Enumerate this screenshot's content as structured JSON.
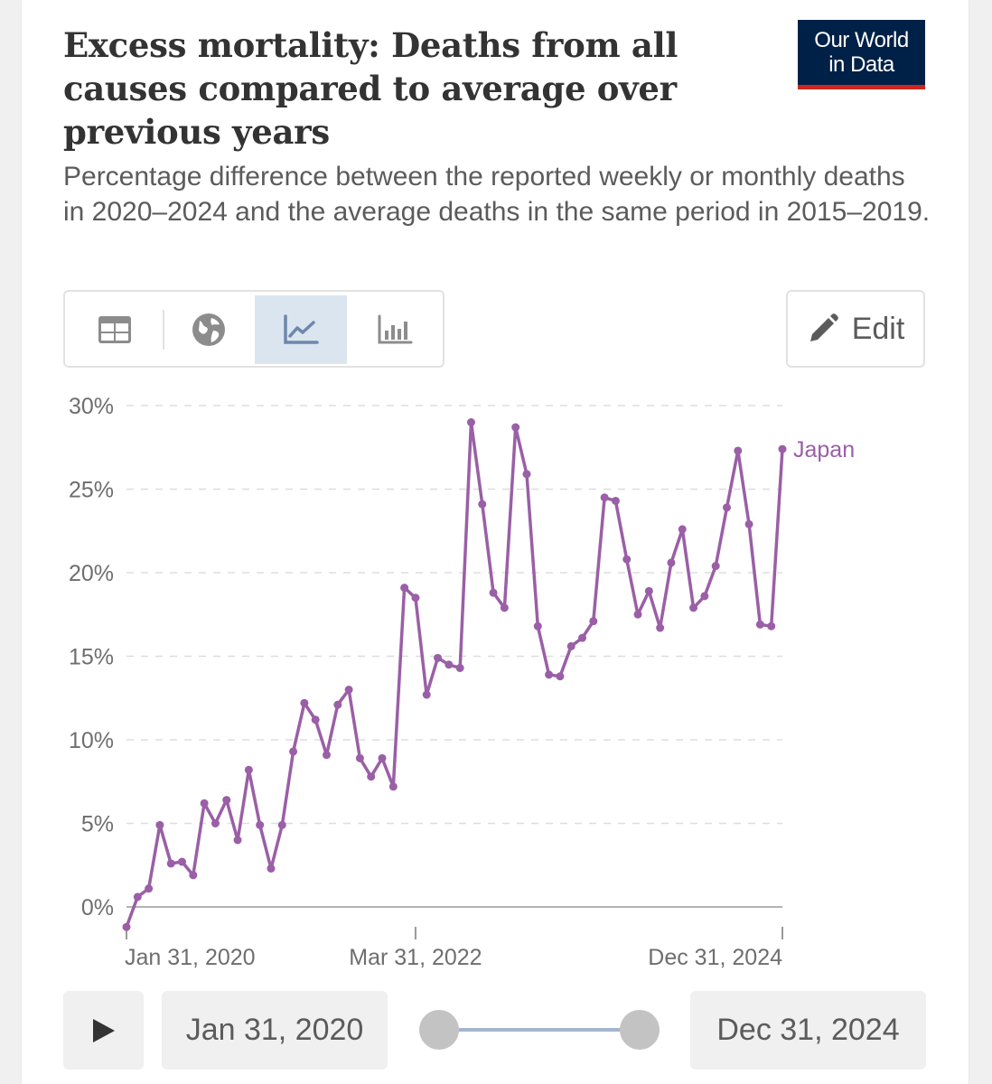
{
  "header": {
    "title": "Excess mortality: Deaths from all causes compared to average over previous years",
    "subtitle": "Percentage difference between the reported weekly or monthly deaths in 2020–2024 and the average deaths in the same period in 2015–2019.",
    "logo_line1": "Our World",
    "logo_line2": "in Data"
  },
  "toolbar": {
    "tabs": [
      {
        "icon": "table-icon",
        "label": "Table",
        "active": false
      },
      {
        "icon": "globe-icon",
        "label": "Map",
        "active": false
      },
      {
        "icon": "line-chart-icon",
        "label": "Chart",
        "active": true
      },
      {
        "icon": "bar-chart-icon",
        "label": "Bar chart",
        "active": false
      }
    ],
    "edit_label": "Edit",
    "edit_icon": "pencil-icon"
  },
  "colors": {
    "series": "#9a5fa6",
    "logo_bg": "#002147",
    "logo_accent": "#ce261e",
    "active_tab": "#dbe5f0"
  },
  "chart_data": {
    "type": "line",
    "title": "",
    "xlabel": "",
    "ylabel": "",
    "ylim": [
      0,
      30
    ],
    "y_ticks": [
      "0%",
      "5%",
      "10%",
      "15%",
      "20%",
      "25%",
      "30%"
    ],
    "x_ticks": [
      "Jan 31, 2020",
      "Mar 31, 2022",
      "Dec 31, 2024"
    ],
    "grid": "horizontal-dashed",
    "series": [
      {
        "name": "Japan",
        "x": [
          "2020-01-31",
          "2020-02-29",
          "2020-03-31",
          "2020-04-30",
          "2020-05-31",
          "2020-06-30",
          "2020-07-31",
          "2020-08-31",
          "2020-09-30",
          "2020-10-31",
          "2020-11-30",
          "2020-12-31",
          "2021-01-31",
          "2021-02-28",
          "2021-03-31",
          "2021-04-30",
          "2021-05-31",
          "2021-06-30",
          "2021-07-31",
          "2021-08-31",
          "2021-09-30",
          "2021-10-31",
          "2021-11-30",
          "2021-12-31",
          "2022-01-31",
          "2022-02-28",
          "2022-03-31",
          "2022-04-30",
          "2022-05-31",
          "2022-06-30",
          "2022-07-31",
          "2022-08-31",
          "2022-09-30",
          "2022-10-31",
          "2022-11-30",
          "2022-12-31",
          "2023-01-31",
          "2023-02-28",
          "2023-03-31",
          "2023-04-30",
          "2023-05-31",
          "2023-06-30",
          "2023-07-31",
          "2023-08-31",
          "2023-09-30",
          "2023-10-31",
          "2023-11-30",
          "2023-12-31",
          "2024-01-31",
          "2024-02-29",
          "2024-03-31",
          "2024-04-30",
          "2024-05-31",
          "2024-06-30",
          "2024-07-31",
          "2024-08-31",
          "2024-09-30",
          "2024-10-31",
          "2024-11-30",
          "2024-12-31"
        ],
        "values": [
          -1.2,
          0.6,
          1.1,
          4.9,
          2.6,
          2.7,
          1.9,
          6.2,
          5.0,
          6.4,
          4.0,
          8.2,
          4.9,
          2.3,
          4.9,
          9.3,
          12.2,
          11.2,
          9.1,
          12.1,
          13.0,
          8.9,
          7.8,
          8.9,
          7.2,
          19.1,
          18.5,
          12.7,
          14.9,
          14.5,
          14.3,
          29.0,
          24.1,
          18.8,
          17.9,
          28.7,
          25.9,
          16.8,
          13.9,
          13.8,
          15.6,
          16.1,
          17.1,
          24.5,
          24.3,
          20.8,
          17.5,
          18.9,
          16.7,
          20.6,
          22.6,
          17.9,
          18.6,
          20.4,
          23.9,
          27.3,
          22.9,
          16.9,
          16.8,
          27.4
        ]
      }
    ]
  },
  "timeline": {
    "start_label": "Jan 31, 2020",
    "end_label": "Dec 31, 2024",
    "play_icon": "play-icon"
  }
}
